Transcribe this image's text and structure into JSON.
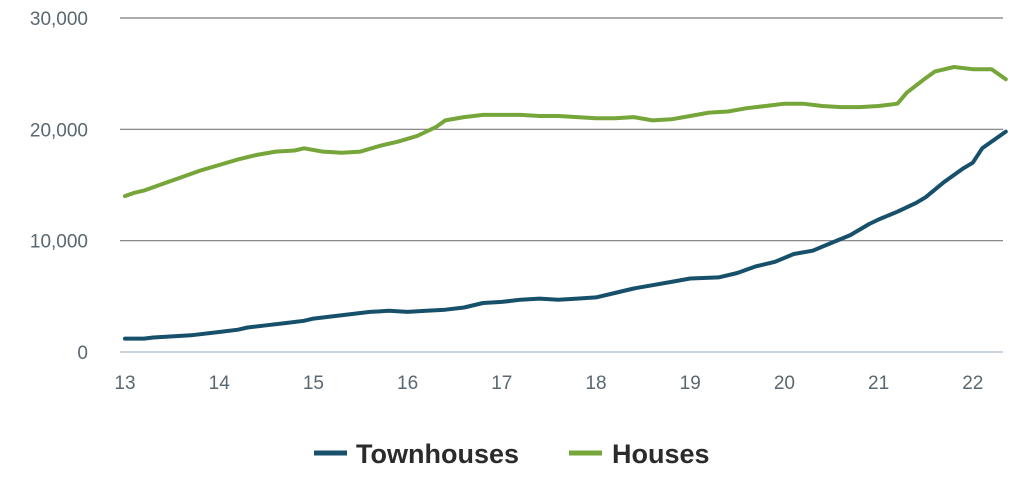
{
  "chart_data": {
    "type": "line",
    "x_ticks": [
      "13",
      "14",
      "15",
      "16",
      "17",
      "18",
      "19",
      "20",
      "21",
      "22"
    ],
    "y_ticks": [
      "0",
      "10,000",
      "20,000",
      "30,000"
    ],
    "xlim": [
      13,
      22.3
    ],
    "ylim": [
      0,
      30000
    ],
    "grid": true,
    "legend_position": "bottom",
    "colors": {
      "townhouses": "#17506a",
      "houses": "#76a53a",
      "grid": "#7a7a7a",
      "axis": "#b7c6cf"
    },
    "series": [
      {
        "name": "Townhouses",
        "key": "townhouses",
        "points": [
          [
            13.0,
            1200
          ],
          [
            13.2,
            1200
          ],
          [
            13.3,
            1300
          ],
          [
            13.5,
            1400
          ],
          [
            13.7,
            1500
          ],
          [
            13.8,
            1600
          ],
          [
            14.0,
            1800
          ],
          [
            14.2,
            2000
          ],
          [
            14.3,
            2200
          ],
          [
            14.5,
            2400
          ],
          [
            14.7,
            2600
          ],
          [
            14.9,
            2800
          ],
          [
            15.0,
            3000
          ],
          [
            15.2,
            3200
          ],
          [
            15.4,
            3400
          ],
          [
            15.6,
            3600
          ],
          [
            15.8,
            3700
          ],
          [
            16.0,
            3600
          ],
          [
            16.2,
            3700
          ],
          [
            16.4,
            3800
          ],
          [
            16.6,
            4000
          ],
          [
            16.8,
            4400
          ],
          [
            17.0,
            4500
          ],
          [
            17.2,
            4700
          ],
          [
            17.4,
            4800
          ],
          [
            17.6,
            4700
          ],
          [
            17.8,
            4800
          ],
          [
            18.0,
            4900
          ],
          [
            18.2,
            5300
          ],
          [
            18.4,
            5700
          ],
          [
            18.6,
            6000
          ],
          [
            18.8,
            6300
          ],
          [
            19.0,
            6600
          ],
          [
            19.3,
            6700
          ],
          [
            19.5,
            7100
          ],
          [
            19.7,
            7700
          ],
          [
            19.9,
            8100
          ],
          [
            20.1,
            8800
          ],
          [
            20.3,
            9100
          ],
          [
            20.5,
            9800
          ],
          [
            20.7,
            10500
          ],
          [
            20.9,
            11500
          ],
          [
            21.0,
            11900
          ],
          [
            21.2,
            12600
          ],
          [
            21.4,
            13400
          ],
          [
            21.5,
            13900
          ],
          [
            21.7,
            15300
          ],
          [
            21.9,
            16500
          ],
          [
            22.0,
            17000
          ],
          [
            22.1,
            18300
          ],
          [
            22.2,
            18900
          ],
          [
            22.35,
            19800
          ]
        ]
      },
      {
        "name": "Houses",
        "key": "houses",
        "points": [
          [
            13.0,
            14000
          ],
          [
            13.1,
            14300
          ],
          [
            13.2,
            14500
          ],
          [
            13.4,
            15100
          ],
          [
            13.6,
            15700
          ],
          [
            13.8,
            16300
          ],
          [
            14.0,
            16800
          ],
          [
            14.2,
            17300
          ],
          [
            14.4,
            17700
          ],
          [
            14.6,
            18000
          ],
          [
            14.8,
            18100
          ],
          [
            14.9,
            18300
          ],
          [
            15.1,
            18000
          ],
          [
            15.3,
            17900
          ],
          [
            15.5,
            18000
          ],
          [
            15.7,
            18500
          ],
          [
            15.9,
            18900
          ],
          [
            16.1,
            19400
          ],
          [
            16.3,
            20200
          ],
          [
            16.4,
            20800
          ],
          [
            16.6,
            21100
          ],
          [
            16.8,
            21300
          ],
          [
            17.0,
            21300
          ],
          [
            17.2,
            21300
          ],
          [
            17.4,
            21200
          ],
          [
            17.6,
            21200
          ],
          [
            17.8,
            21100
          ],
          [
            18.0,
            21000
          ],
          [
            18.2,
            21000
          ],
          [
            18.4,
            21100
          ],
          [
            18.6,
            20800
          ],
          [
            18.8,
            20900
          ],
          [
            19.0,
            21200
          ],
          [
            19.2,
            21500
          ],
          [
            19.4,
            21600
          ],
          [
            19.6,
            21900
          ],
          [
            19.8,
            22100
          ],
          [
            20.0,
            22300
          ],
          [
            20.2,
            22300
          ],
          [
            20.4,
            22100
          ],
          [
            20.6,
            22000
          ],
          [
            20.8,
            22000
          ],
          [
            21.0,
            22100
          ],
          [
            21.2,
            22300
          ],
          [
            21.3,
            23300
          ],
          [
            21.5,
            24600
          ],
          [
            21.6,
            25200
          ],
          [
            21.8,
            25600
          ],
          [
            22.0,
            25400
          ],
          [
            22.2,
            25400
          ],
          [
            22.35,
            24500
          ]
        ]
      }
    ]
  }
}
